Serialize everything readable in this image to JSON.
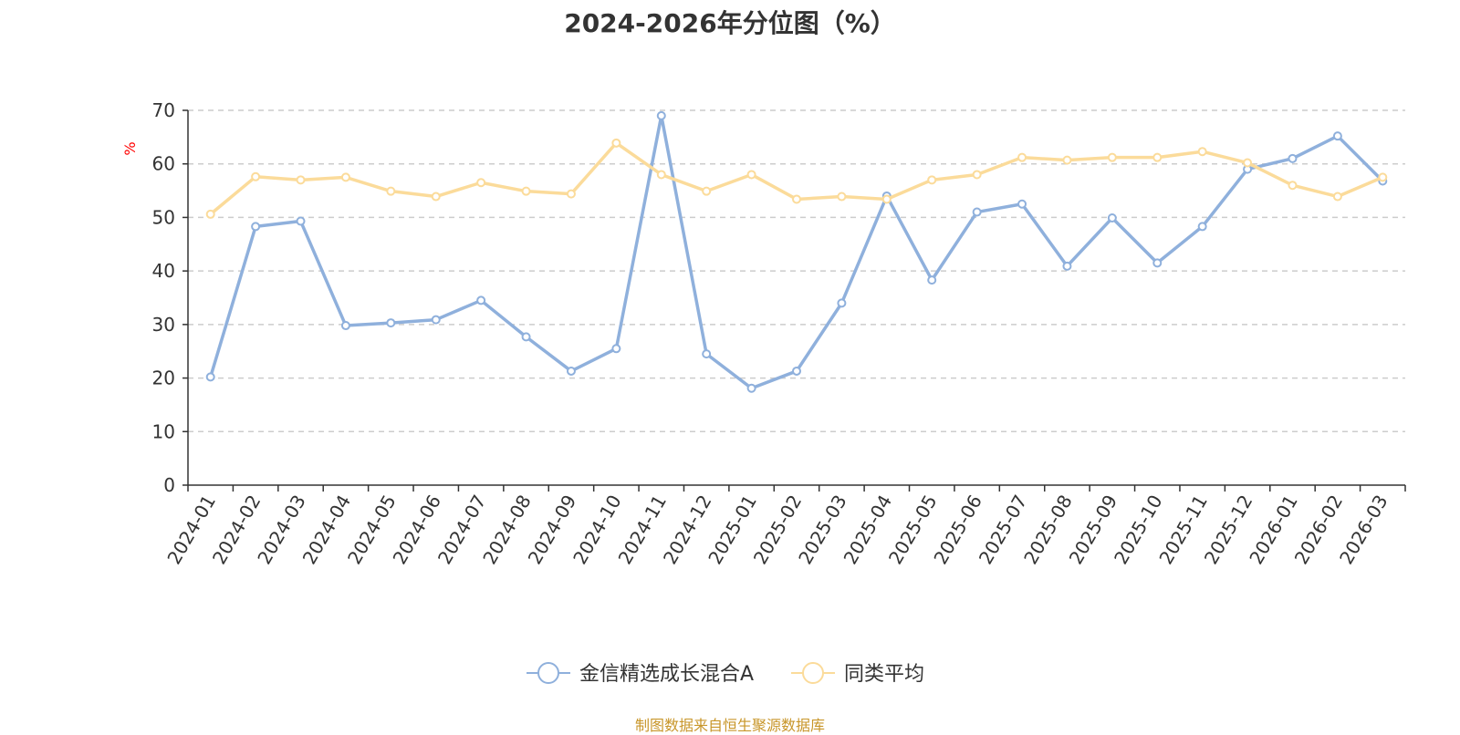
{
  "chart_data": {
    "type": "line",
    "title": "2024-2026年分位图（%）",
    "ylabel": "%",
    "ylim": [
      0,
      70
    ],
    "yticks": [
      0,
      10,
      20,
      30,
      40,
      50,
      60,
      70
    ],
    "grid": true,
    "legend_position": "bottom",
    "categories": [
      "2024-01",
      "2024-02",
      "2024-03",
      "2024-04",
      "2024-05",
      "2024-06",
      "2024-07",
      "2024-08",
      "2024-09",
      "2024-10",
      "2024-11",
      "2024-12",
      "2025-01",
      "2025-02",
      "2025-03",
      "2025-04",
      "2025-05",
      "2025-06",
      "2025-07",
      "2025-08",
      "2025-09",
      "2025-10",
      "2025-11",
      "2025-12",
      "2026-01",
      "2026-02",
      "2026-03"
    ],
    "series": [
      {
        "name": "金信精选成长混合A",
        "color": "#8fb0dc",
        "values": [
          20.2,
          48.3,
          49.3,
          29.8,
          30.3,
          30.9,
          34.5,
          27.7,
          21.3,
          25.5,
          69.0,
          24.5,
          18.1,
          21.3,
          34.0,
          54.0,
          38.3,
          51.0,
          52.5,
          40.9,
          49.9,
          41.5,
          48.3,
          59.0,
          61.0,
          65.2,
          56.8
        ]
      },
      {
        "name": "同类平均",
        "color": "#fbdb9a",
        "values": [
          50.6,
          57.6,
          57.0,
          57.5,
          54.9,
          53.9,
          56.5,
          54.9,
          54.4,
          63.9,
          58.0,
          54.9,
          58.0,
          53.4,
          53.9,
          53.4,
          57.0,
          58.0,
          61.2,
          60.7,
          61.2,
          61.2,
          62.3,
          60.2,
          56.0,
          53.9,
          57.5
        ]
      }
    ]
  },
  "footer": "制图数据来自恒生聚源数据库"
}
